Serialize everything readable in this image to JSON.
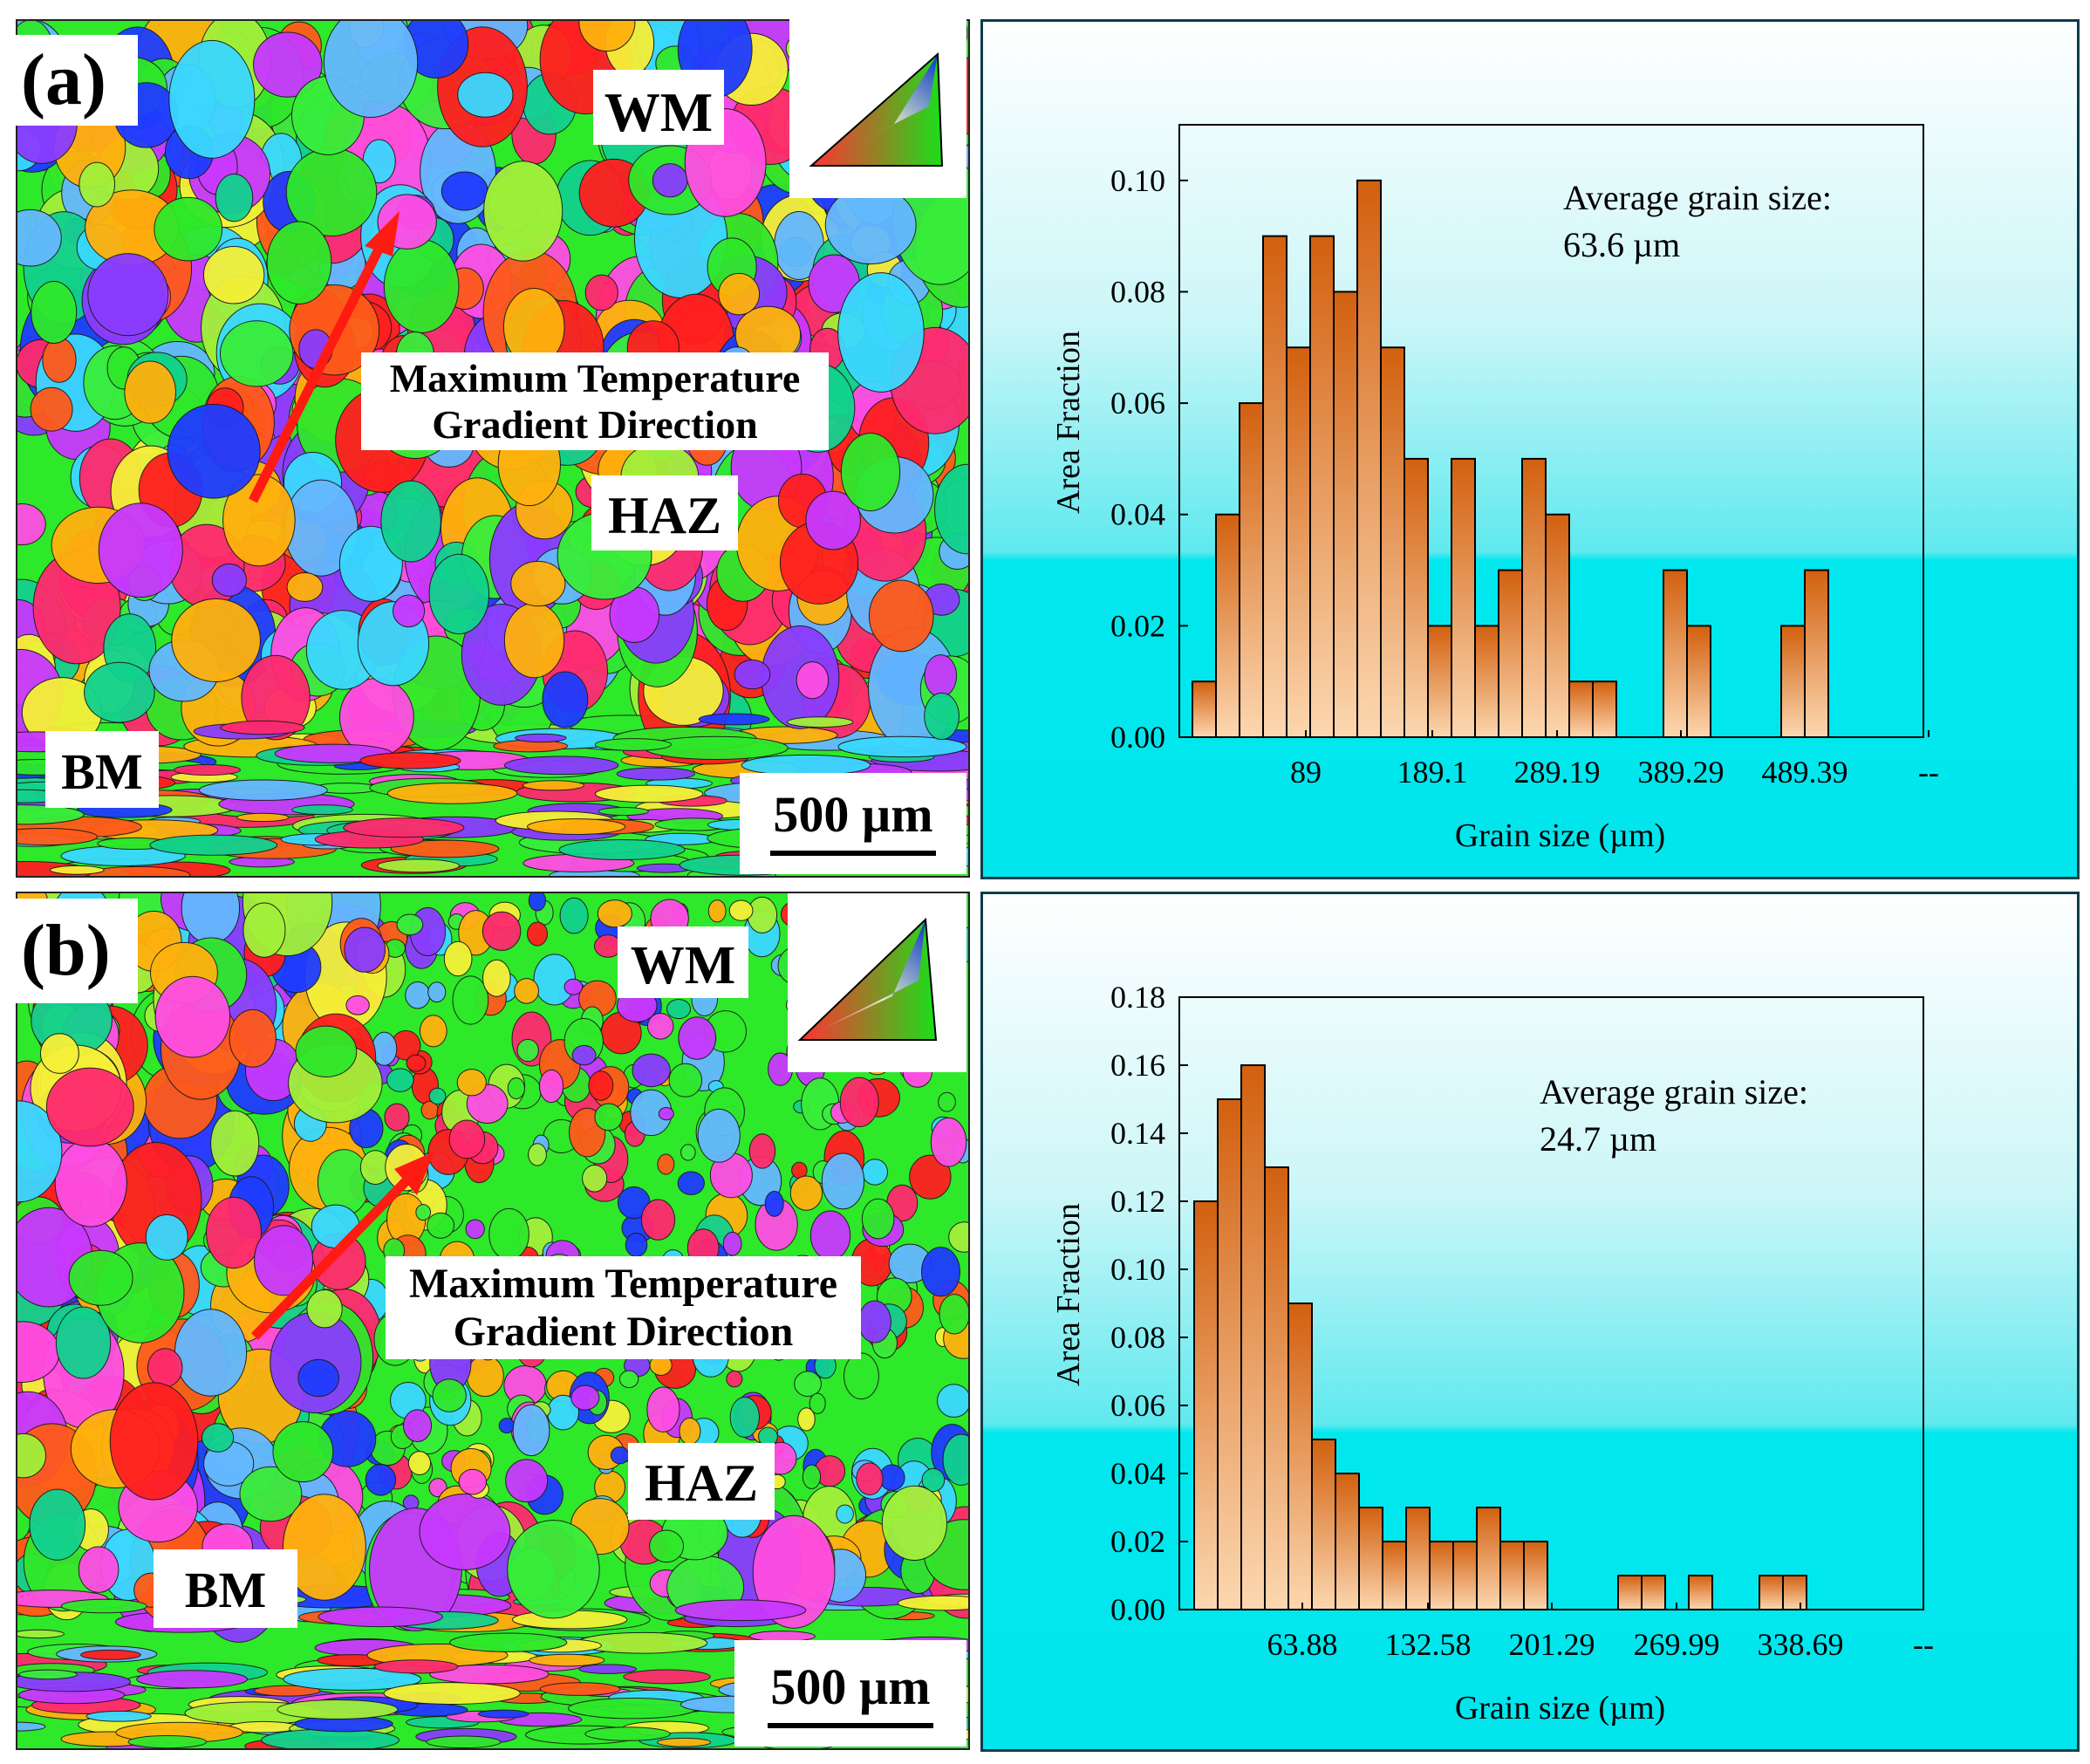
{
  "panels": [
    {
      "label": "(a)",
      "map_labels": {
        "wm": "WM",
        "haz": "HAZ",
        "bm": "BM",
        "arrow_line1": "Maximum Temperature",
        "arrow_line2": "Gradient Direction",
        "scale": "500 µm"
      }
    },
    {
      "label": "(b)",
      "map_labels": {
        "wm": "WM",
        "haz": "HAZ",
        "bm": "BM",
        "arrow_line1": "Maximum Temperature",
        "arrow_line2": "Gradient Direction",
        "scale": "500 µm"
      }
    }
  ],
  "colors": {
    "bar_top": "#d2600f",
    "bar_bottom": "#fcd7b0",
    "bg_cyan": "#00e6ec",
    "arrow": "#ff1a12"
  },
  "chart_data": [
    {
      "type": "bar",
      "title": "",
      "xlabel": "Grain size (µm)",
      "ylabel": "Area Fraction",
      "annotation_line1": "Average grain size:",
      "annotation_line2": "63.6 µm",
      "x_tick_labels": [
        "89",
        "189.1",
        "289.19",
        "389.29",
        "489.39",
        "--"
      ],
      "y_tick_labels": [
        "0.00",
        "0.02",
        "0.04",
        "0.06",
        "0.08",
        "0.10"
      ],
      "ylim": [
        0,
        0.11
      ],
      "values": [
        0.01,
        0.04,
        0.06,
        0.09,
        0.07,
        0.09,
        0.08,
        0.1,
        0.07,
        0.05,
        0.02,
        0.05,
        0.02,
        0.03,
        0.05,
        0.04,
        0.01,
        0.01,
        0,
        0,
        0.03,
        0.02,
        0,
        0,
        0,
        0.02,
        0.03
      ],
      "grid": false
    },
    {
      "type": "bar",
      "title": "",
      "xlabel": "Grain size (µm)",
      "ylabel": "Area Fraction",
      "annotation_line1": "Average grain size:",
      "annotation_line2": "24.7 µm",
      "x_tick_labels": [
        "63.88",
        "132.58",
        "201.29",
        "269.99",
        "338.69",
        "--"
      ],
      "y_tick_labels": [
        "0.00",
        "0.02",
        "0.04",
        "0.06",
        "0.08",
        "0.10",
        "0.12",
        "0.14",
        "0.16",
        "0.18"
      ],
      "ylim": [
        0,
        0.18
      ],
      "values": [
        0.12,
        0.15,
        0.16,
        0.13,
        0.09,
        0.05,
        0.04,
        0.03,
        0.02,
        0.03,
        0.02,
        0.02,
        0.03,
        0.02,
        0.02,
        0,
        0,
        0,
        0.01,
        0.01,
        0,
        0.01,
        0,
        0,
        0.01,
        0.01
      ],
      "grid": false
    }
  ]
}
